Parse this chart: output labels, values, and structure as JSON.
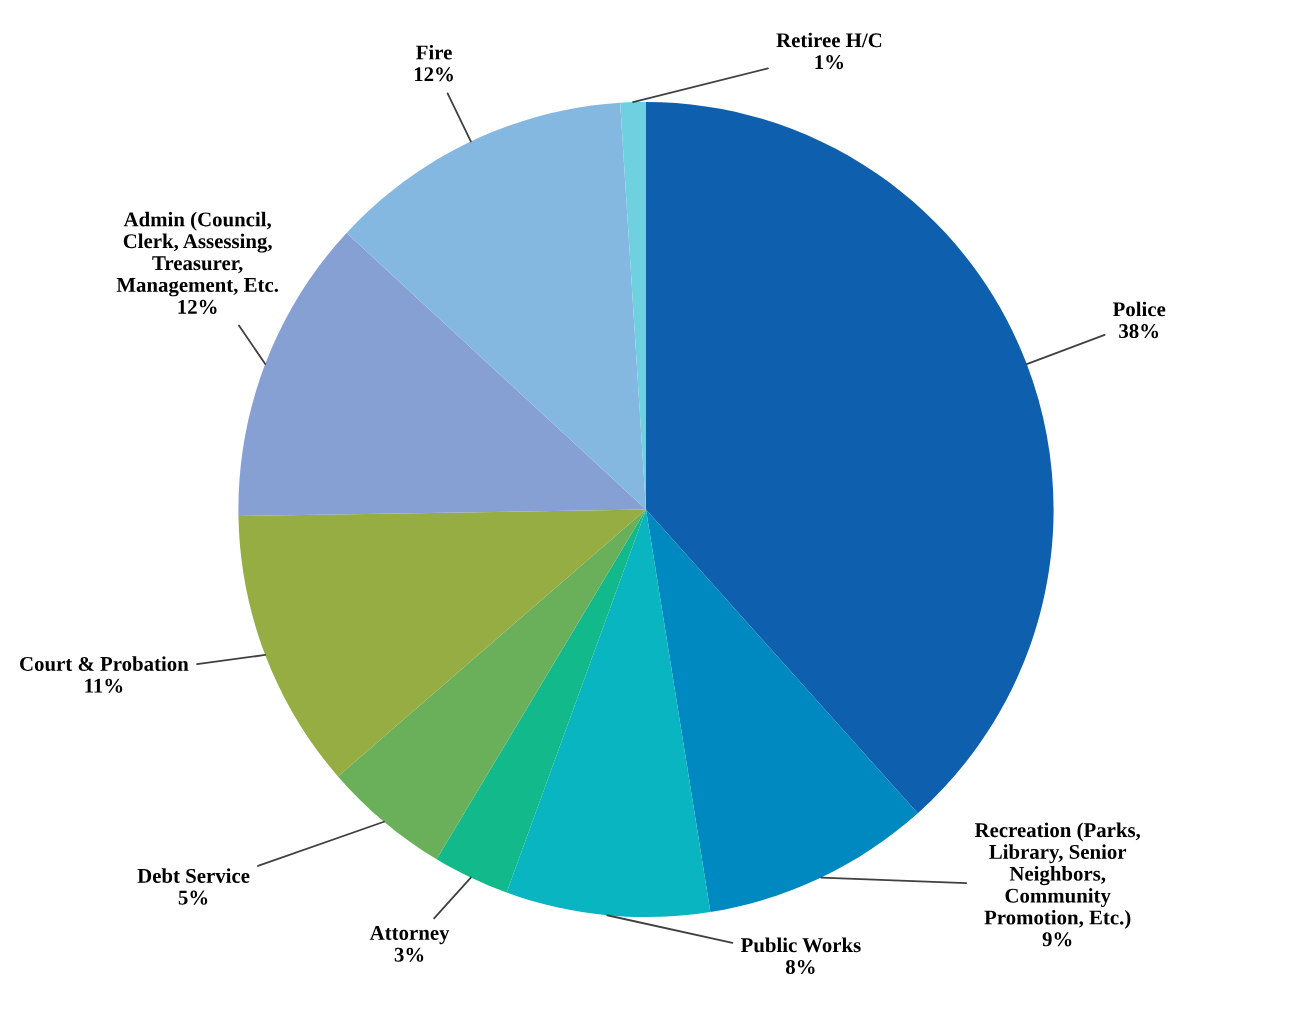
{
  "chart_data": {
    "type": "pie",
    "categories": [
      "Police",
      "Recreation (Parks,\nLibrary, Senior\nNeighbors,\nCommunity\nPromotion, Etc.)",
      "Public Works",
      "Attorney",
      "Debt Service",
      "Court & Probation",
      "Admin (Council,\nClerk, Assessing,\nTreasurer,\nManagement, Etc.",
      "Fire",
      "Retiree H/C"
    ],
    "values": [
      38,
      9,
      8,
      3,
      5,
      11,
      12,
      12,
      1
    ],
    "colors": [
      "#0e5fae",
      "#0088c0",
      "#09b5c0",
      "#12b98a",
      "#6ab05a",
      "#95ad42",
      "#87a0d4",
      "#85b8e0",
      "#6fd0e0"
    ],
    "value_labels": [
      "38%",
      "9%",
      "8%",
      "3%",
      "5%",
      "11%",
      "12%",
      "12%",
      "1%"
    ],
    "legend": false
  }
}
